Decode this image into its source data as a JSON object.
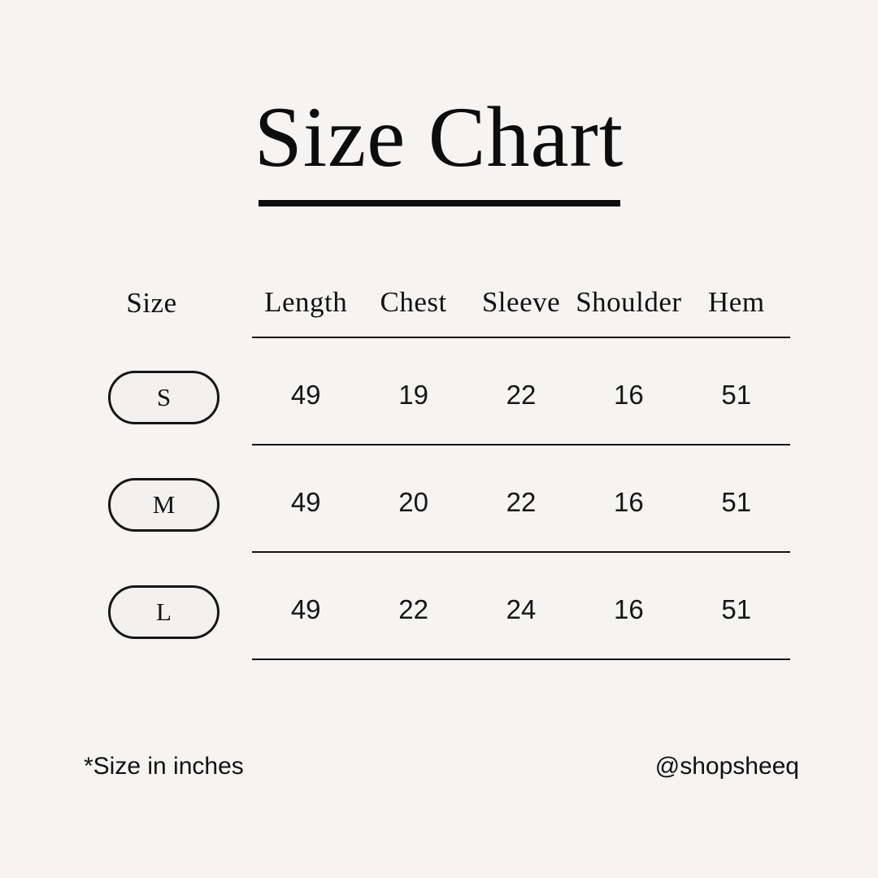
{
  "page": {
    "background_color": "#f5f4f2",
    "text_color": "#111111",
    "accent_color": "#0d0d0d"
  },
  "title": {
    "text": "Size Chart"
  },
  "chart_data": {
    "type": "table",
    "title": "Size Chart",
    "columns": [
      "Size",
      "Length",
      "Chest",
      "Sleeve",
      "Shoulder",
      "Hem"
    ],
    "rows": [
      {
        "size": "S",
        "values": [
          "49",
          "19",
          "22",
          "16",
          "51"
        ]
      },
      {
        "size": "M",
        "values": [
          "49",
          "20",
          "22",
          "16",
          "51"
        ]
      },
      {
        "size": "L",
        "values": [
          "49",
          "22",
          "24",
          "16",
          "51"
        ]
      }
    ],
    "units": "inches",
    "layout": "size badges in left column, 5 measurement columns separated by horizontal rules"
  },
  "footer": {
    "note": "*Size in inches",
    "handle": "@shopsheeq"
  }
}
